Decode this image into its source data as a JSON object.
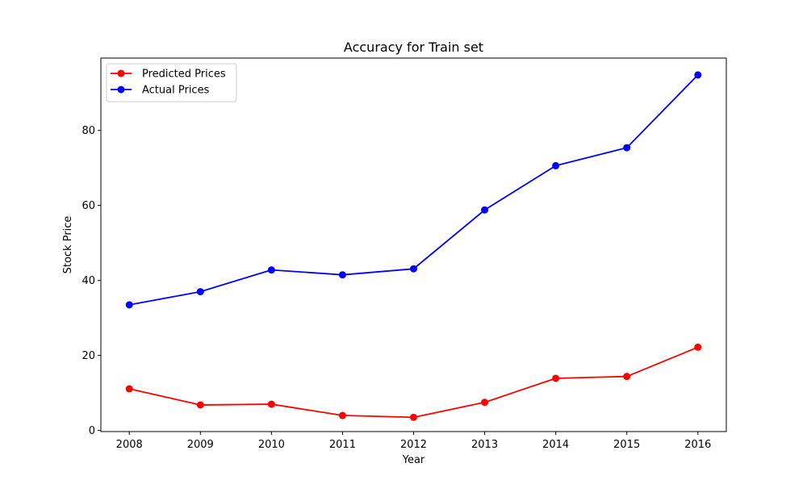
{
  "chart_data": {
    "type": "line",
    "title": "Accuracy for Train set",
    "xlabel": "Year",
    "ylabel": "Stock Price",
    "x": [
      2008,
      2009,
      2010,
      2011,
      2012,
      2013,
      2014,
      2015,
      2016
    ],
    "x_tick_labels": [
      "2008",
      "2009",
      "2010",
      "2011",
      "2012",
      "2013",
      "2014",
      "2015",
      "2016"
    ],
    "y_ticks": [
      0,
      20,
      40,
      60,
      80
    ],
    "y_tick_labels": [
      "0",
      "20",
      "40",
      "60",
      "80"
    ],
    "xlim": [
      2007.6,
      2016.4
    ],
    "ylim": [
      -0.3,
      99.3
    ],
    "grid": false,
    "legend_position": "upper-left",
    "series": [
      {
        "name": "Predicted Prices",
        "color": "#ff0000",
        "marker": "circle",
        "values": [
          11.1,
          6.8,
          7.0,
          4.0,
          3.5,
          7.5,
          13.9,
          14.4,
          22.2
        ]
      },
      {
        "name": "Actual Prices",
        "color": "#0000ff",
        "marker": "circle",
        "values": [
          33.5,
          37.0,
          42.8,
          41.5,
          43.1,
          58.8,
          70.6,
          75.4,
          94.8
        ]
      }
    ]
  }
}
